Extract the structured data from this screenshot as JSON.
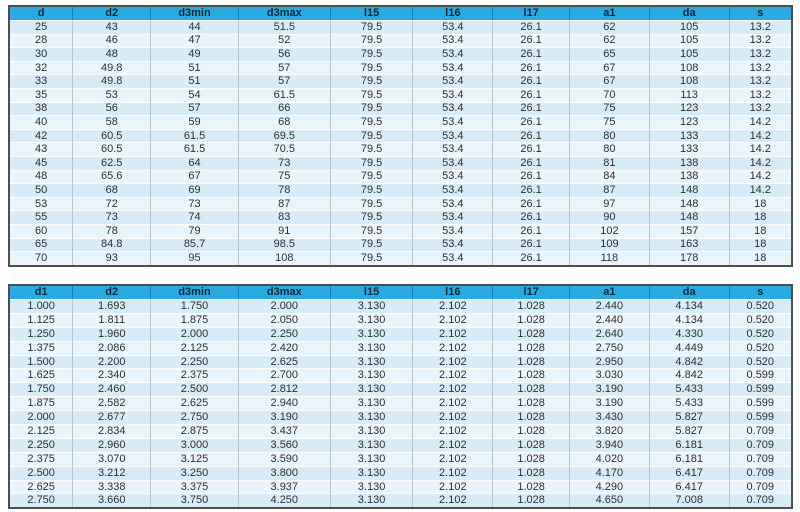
{
  "colors": {
    "header_bg": "#29aae1",
    "header_text": "#0e2a3c",
    "row_odd": "#d8ecf7",
    "row_even": "#eaf5fb",
    "outer_border": "#4e4e4e",
    "column_grid": "#b5c3cb",
    "row_separator": "#ffffff",
    "cell_text": "#2e2e2e"
  },
  "tables": [
    {
      "id": "metric-dimension-table",
      "headers": [
        "d",
        "d2",
        "d3min",
        "d3max",
        "l15",
        "l16",
        "l17",
        "a1",
        "da",
        "s"
      ],
      "rows": [
        [
          "25",
          "43",
          "44",
          "51.5",
          "79.5",
          "53.4",
          "26.1",
          "62",
          "105",
          "13.2"
        ],
        [
          "28",
          "46",
          "47",
          "52",
          "79.5",
          "53.4",
          "26.1",
          "62",
          "105",
          "13.2"
        ],
        [
          "30",
          "48",
          "49",
          "56",
          "79.5",
          "53.4",
          "26.1",
          "65",
          "105",
          "13.2"
        ],
        [
          "32",
          "49.8",
          "51",
          "57",
          "79.5",
          "53.4",
          "26.1",
          "67",
          "108",
          "13.2"
        ],
        [
          "33",
          "49.8",
          "51",
          "57",
          "79.5",
          "53.4",
          "26.1",
          "67",
          "108",
          "13.2"
        ],
        [
          "35",
          "53",
          "54",
          "61.5",
          "79.5",
          "53.4",
          "26.1",
          "70",
          "113",
          "13.2"
        ],
        [
          "38",
          "56",
          "57",
          "66",
          "79.5",
          "53.4",
          "26.1",
          "75",
          "123",
          "13.2"
        ],
        [
          "40",
          "58",
          "59",
          "68",
          "79.5",
          "53.4",
          "26.1",
          "75",
          "123",
          "14.2"
        ],
        [
          "42",
          "60.5",
          "61.5",
          "69.5",
          "79.5",
          "53.4",
          "26.1",
          "80",
          "133",
          "14.2"
        ],
        [
          "43",
          "60.5",
          "61.5",
          "70.5",
          "79.5",
          "53.4",
          "26.1",
          "80",
          "133",
          "14.2"
        ],
        [
          "45",
          "62.5",
          "64",
          "73",
          "79.5",
          "53.4",
          "26.1",
          "81",
          "138",
          "14.2"
        ],
        [
          "48",
          "65.6",
          "67",
          "75",
          "79.5",
          "53.4",
          "26.1",
          "84",
          "138",
          "14.2"
        ],
        [
          "50",
          "68",
          "69",
          "78",
          "79.5",
          "53.4",
          "26.1",
          "87",
          "148",
          "14.2"
        ],
        [
          "53",
          "72",
          "73",
          "87",
          "79.5",
          "53.4",
          "26.1",
          "97",
          "148",
          "18"
        ],
        [
          "55",
          "73",
          "74",
          "83",
          "79.5",
          "53.4",
          "26.1",
          "90",
          "148",
          "18"
        ],
        [
          "60",
          "78",
          "79",
          "91",
          "79.5",
          "53.4",
          "26.1",
          "102",
          "157",
          "18"
        ],
        [
          "65",
          "84.8",
          "85.7",
          "98.5",
          "79.5",
          "53.4",
          "26.1",
          "109",
          "163",
          "18"
        ],
        [
          "70",
          "93",
          "95",
          "108",
          "79.5",
          "53.4",
          "26.1",
          "118",
          "178",
          "18"
        ]
      ]
    },
    {
      "id": "inch-dimension-table",
      "headers": [
        "d1",
        "d2",
        "d3min",
        "d3max",
        "l15",
        "l16",
        "l17",
        "a1",
        "da",
        "s"
      ],
      "rows": [
        [
          "1.000",
          "1.693",
          "1.750",
          "2.000",
          "3.130",
          "2.102",
          "1.028",
          "2.440",
          "4.134",
          "0.520"
        ],
        [
          "1.125",
          "1.811",
          "1.875",
          "2.050",
          "3.130",
          "2.102",
          "1.028",
          "2.440",
          "4.134",
          "0.520"
        ],
        [
          "1.250",
          "1.960",
          "2.000",
          "2.250",
          "3.130",
          "2.102",
          "1.028",
          "2.640",
          "4.330",
          "0.520"
        ],
        [
          "1.375",
          "2.086",
          "2.125",
          "2.420",
          "3.130",
          "2.102",
          "1.028",
          "2.750",
          "4.449",
          "0.520"
        ],
        [
          "1.500",
          "2.200",
          "2.250",
          "2.625",
          "3.130",
          "2.102",
          "1.028",
          "2.950",
          "4.842",
          "0.520"
        ],
        [
          "1.625",
          "2.340",
          "2.375",
          "2.700",
          "3.130",
          "2.102",
          "1.028",
          "3.030",
          "4.842",
          "0.599"
        ],
        [
          "1.750",
          "2.460",
          "2.500",
          "2.812",
          "3.130",
          "2.102",
          "1.028",
          "3.190",
          "5.433",
          "0.599"
        ],
        [
          "1.875",
          "2.582",
          "2.625",
          "2.940",
          "3.130",
          "2.102",
          "1.028",
          "3.190",
          "5.433",
          "0.599"
        ],
        [
          "2.000",
          "2.677",
          "2.750",
          "3.190",
          "3.130",
          "2.102",
          "1.028",
          "3.430",
          "5.827",
          "0.599"
        ],
        [
          "2.125",
          "2.834",
          "2.875",
          "3.437",
          "3.130",
          "2.102",
          "1.028",
          "3.820",
          "5.827",
          "0.709"
        ],
        [
          "2.250",
          "2.960",
          "3.000",
          "3.560",
          "3.130",
          "2.102",
          "1.028",
          "3.940",
          "6.181",
          "0.709"
        ],
        [
          "2.375",
          "3.070",
          "3.125",
          "3.590",
          "3.130",
          "2.102",
          "1.028",
          "4.020",
          "6.181",
          "0.709"
        ],
        [
          "2.500",
          "3.212",
          "3.250",
          "3.800",
          "3.130",
          "2.102",
          "1.028",
          "4.170",
          "6.417",
          "0.709"
        ],
        [
          "2.625",
          "3.338",
          "3.375",
          "3.937",
          "3.130",
          "2.102",
          "1.028",
          "4.290",
          "6.417",
          "0.709"
        ],
        [
          "2.750",
          "3.660",
          "3.750",
          "4.250",
          "3.130",
          "2.102",
          "1.028",
          "4.650",
          "7.008",
          "0.709"
        ]
      ]
    }
  ]
}
